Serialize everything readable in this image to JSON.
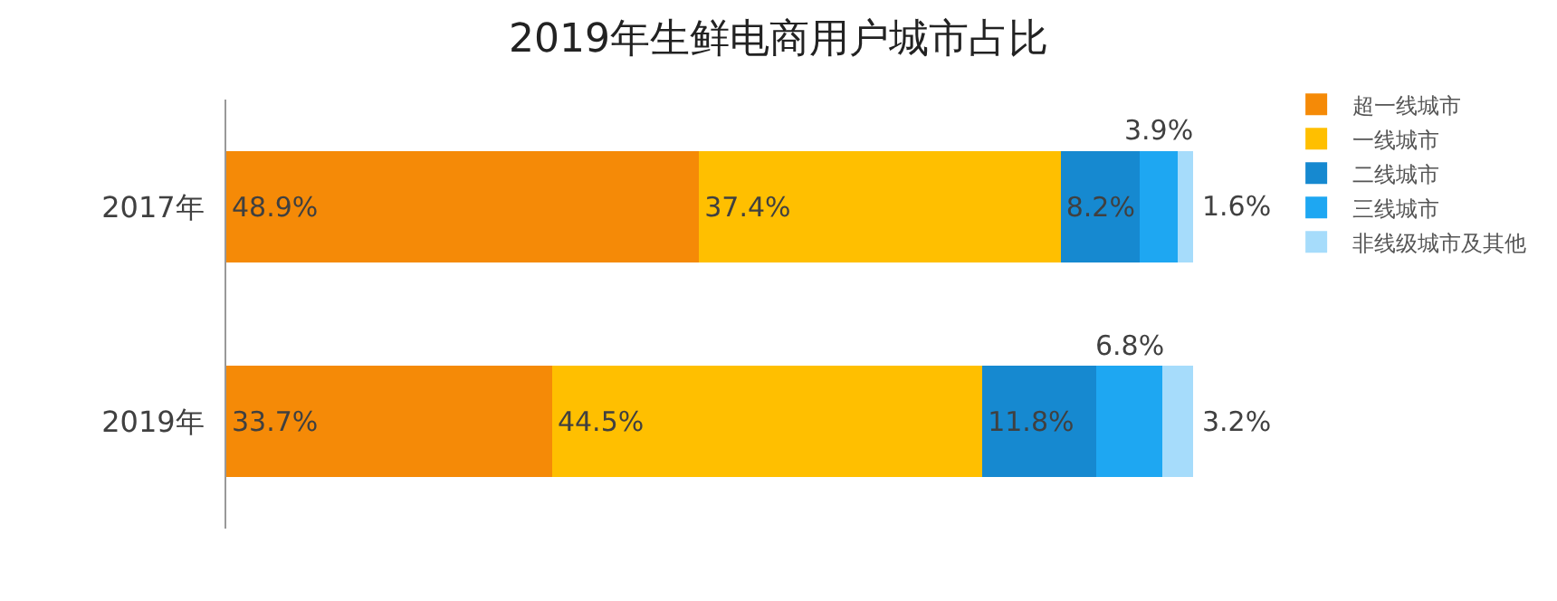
{
  "chart_data": {
    "type": "bar",
    "title": "2019年生鲜电商用户城市占比",
    "orientation": "horizontal",
    "stacked": true,
    "categories": [
      "2017年",
      "2019年"
    ],
    "series": [
      {
        "name": "超一线城市",
        "color": "#f58a07",
        "values": [
          48.9,
          33.7
        ],
        "value_labels": [
          "48.9%",
          "33.7%"
        ]
      },
      {
        "name": "一线城市",
        "color": "#ffbf00",
        "values": [
          37.4,
          44.5
        ],
        "value_labels": [
          "37.4%",
          "44.5%"
        ]
      },
      {
        "name": "二线城市",
        "color": "#1689d0",
        "values": [
          8.2,
          11.8
        ],
        "value_labels": [
          "8.2%",
          "11.8%"
        ]
      },
      {
        "name": "三线城市",
        "color": "#1ea7f2",
        "values": [
          3.9,
          6.8
        ],
        "value_labels": [
          "3.9%",
          "6.8%"
        ]
      },
      {
        "name": "非线级城市及其他",
        "color": "#a6dcfb",
        "values": [
          1.6,
          3.2
        ],
        "value_labels": [
          "1.6%",
          "3.2%"
        ]
      }
    ],
    "xlim": [
      0,
      100
    ],
    "tick_labels": "y",
    "legend": "right"
  }
}
